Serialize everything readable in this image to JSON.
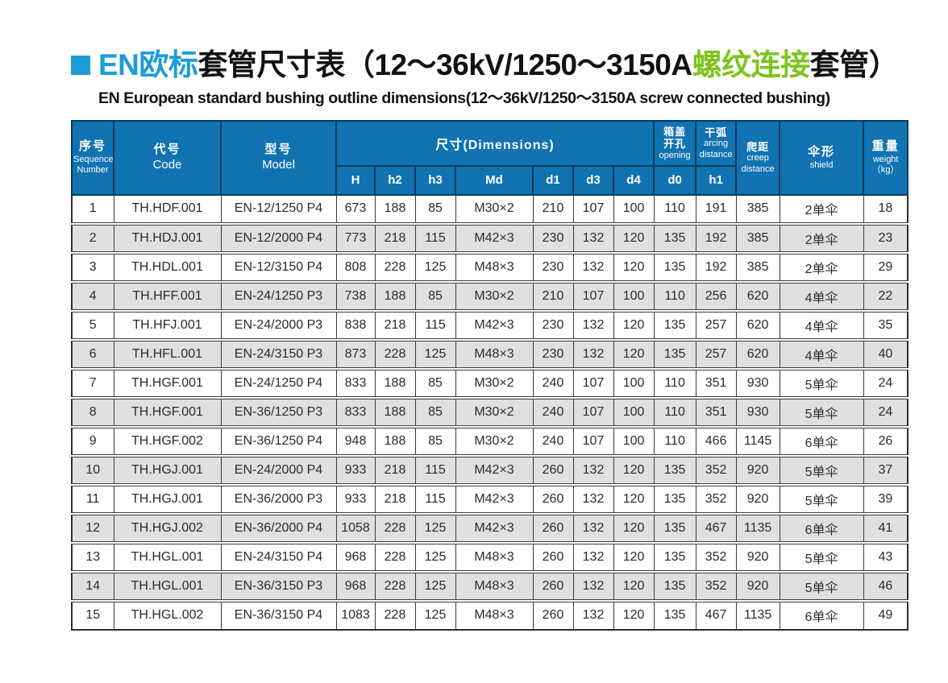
{
  "title": {
    "cn_blue": "EN欧标",
    "cn_black_1": "套管尺寸表（12～36kV/1250～3150A",
    "cn_green": "螺纹连接",
    "cn_black_2": "套管）",
    "subtitle_en": "EN European standard bushing outline dimensions(12～36kV/1250～3150A screw connected bushing)"
  },
  "colors": {
    "title_blue": "#1e9cd9",
    "title_green": "#7dc41e",
    "header_bg": "#1173b2",
    "header_border": "#0a3a5c",
    "row_alt_gray": "#e0e0e0"
  },
  "table": {
    "header": {
      "sequence": {
        "cn": "序号",
        "en1": "Sequence",
        "en2": "Number"
      },
      "code": {
        "cn": "代号",
        "en": "Code"
      },
      "model": {
        "cn": "型号",
        "en": "Model"
      },
      "dimensions_group": "尺寸(Dimensions)",
      "dim_cols": [
        "H",
        "h2",
        "h3",
        "Md",
        "d1",
        "d3",
        "d4"
      ],
      "opening": {
        "cn1": "箱盖",
        "cn2": "开孔",
        "en": "opening",
        "sub": "d0"
      },
      "arcing": {
        "cn": "干弧",
        "en1": "arcing",
        "en2": "distance",
        "sub": "h1"
      },
      "creep": {
        "cn": "爬距",
        "en1": "creep",
        "en2": "distance"
      },
      "shield": {
        "cn": "伞形",
        "en": "shield"
      },
      "weight": {
        "cn": "重量",
        "en": "weight",
        "unit": "（kg）"
      }
    },
    "rows": [
      [
        "1",
        "TH.HDF.001",
        "EN-12/1250 P4",
        "673",
        "188",
        "85",
        "M30×2",
        "210",
        "107",
        "100",
        "110",
        "191",
        "385",
        "2单伞",
        "18"
      ],
      [
        "2",
        "TH.HDJ.001",
        "EN-12/2000 P4",
        "773",
        "218",
        "115",
        "M42×3",
        "230",
        "132",
        "120",
        "135",
        "192",
        "385",
        "2单伞",
        "23"
      ],
      [
        "3",
        "TH.HDL.001",
        "EN-12/3150 P4",
        "808",
        "228",
        "125",
        "M48×3",
        "230",
        "132",
        "120",
        "135",
        "192",
        "385",
        "2单伞",
        "29"
      ],
      [
        "4",
        "TH.HFF.001",
        "EN-24/1250 P3",
        "738",
        "188",
        "85",
        "M30×2",
        "210",
        "107",
        "100",
        "110",
        "256",
        "620",
        "4单伞",
        "22"
      ],
      [
        "5",
        "TH.HFJ.001",
        "EN-24/2000 P3",
        "838",
        "218",
        "115",
        "M42×3",
        "230",
        "132",
        "120",
        "135",
        "257",
        "620",
        "4单伞",
        "35"
      ],
      [
        "6",
        "TH.HFL.001",
        "EN-24/3150 P3",
        "873",
        "228",
        "125",
        "M48×3",
        "230",
        "132",
        "120",
        "135",
        "257",
        "620",
        "4单伞",
        "40"
      ],
      [
        "7",
        "TH.HGF.001",
        "EN-24/1250 P4",
        "833",
        "188",
        "85",
        "M30×2",
        "240",
        "107",
        "100",
        "110",
        "351",
        "930",
        "5单伞",
        "24"
      ],
      [
        "8",
        "TH.HGF.001",
        "EN-36/1250 P3",
        "833",
        "188",
        "85",
        "M30×2",
        "240",
        "107",
        "100",
        "110",
        "351",
        "930",
        "5单伞",
        "24"
      ],
      [
        "9",
        "TH.HGF.002",
        "EN-36/1250 P4",
        "948",
        "188",
        "85",
        "M30×2",
        "240",
        "107",
        "100",
        "110",
        "466",
        "1145",
        "6单伞",
        "26"
      ],
      [
        "10",
        "TH.HGJ.001",
        "EN-24/2000 P4",
        "933",
        "218",
        "115",
        "M42×3",
        "260",
        "132",
        "120",
        "135",
        "352",
        "920",
        "5单伞",
        "37"
      ],
      [
        "11",
        "TH.HGJ.001",
        "EN-36/2000 P3",
        "933",
        "218",
        "115",
        "M42×3",
        "260",
        "132",
        "120",
        "135",
        "352",
        "920",
        "5单伞",
        "39"
      ],
      [
        "12",
        "TH.HGJ.002",
        "EN-36/2000 P4",
        "1058",
        "228",
        "125",
        "M42×3",
        "260",
        "132",
        "120",
        "135",
        "467",
        "1135",
        "6单伞",
        "41"
      ],
      [
        "13",
        "TH.HGL.001",
        "EN-24/3150 P4",
        "968",
        "228",
        "125",
        "M48×3",
        "260",
        "132",
        "120",
        "135",
        "352",
        "920",
        "5单伞",
        "43"
      ],
      [
        "14",
        "TH.HGL.001",
        "EN-36/3150 P3",
        "968",
        "228",
        "125",
        "M48×3",
        "260",
        "132",
        "120",
        "135",
        "352",
        "920",
        "5单伞",
        "46"
      ],
      [
        "15",
        "TH.HGL.002",
        "EN-36/3150 P4",
        "1083",
        "228",
        "125",
        "M48×3",
        "260",
        "132",
        "120",
        "135",
        "467",
        "1135",
        "6单伞",
        "49"
      ]
    ]
  }
}
